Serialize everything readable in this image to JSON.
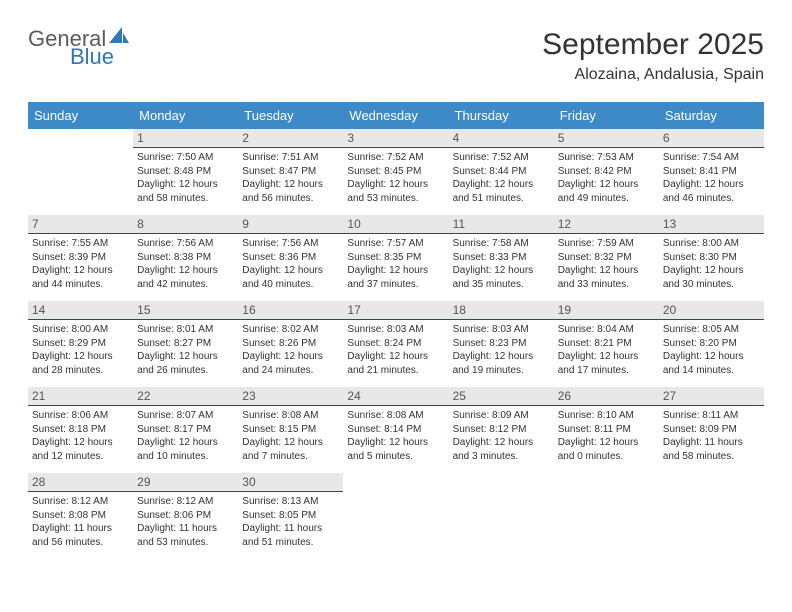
{
  "logo": {
    "word1": "General",
    "word2": "Blue",
    "sail_color": "#2f77b8"
  },
  "title": "September 2025",
  "location": "Alozaina, Andalusia, Spain",
  "colors": {
    "header_bg": "#3d8ac7",
    "header_fg": "#ffffff",
    "daynum_bg": "#e8e8e8",
    "daynum_fg": "#555555",
    "daynum_border": "#28477a",
    "text": "#333333"
  },
  "weekdays": [
    "Sunday",
    "Monday",
    "Tuesday",
    "Wednesday",
    "Thursday",
    "Friday",
    "Saturday"
  ],
  "weeks": [
    [
      null,
      {
        "n": "1",
        "sr": "7:50 AM",
        "ss": "8:48 PM",
        "dl": "12 hours and 58 minutes."
      },
      {
        "n": "2",
        "sr": "7:51 AM",
        "ss": "8:47 PM",
        "dl": "12 hours and 56 minutes."
      },
      {
        "n": "3",
        "sr": "7:52 AM",
        "ss": "8:45 PM",
        "dl": "12 hours and 53 minutes."
      },
      {
        "n": "4",
        "sr": "7:52 AM",
        "ss": "8:44 PM",
        "dl": "12 hours and 51 minutes."
      },
      {
        "n": "5",
        "sr": "7:53 AM",
        "ss": "8:42 PM",
        "dl": "12 hours and 49 minutes."
      },
      {
        "n": "6",
        "sr": "7:54 AM",
        "ss": "8:41 PM",
        "dl": "12 hours and 46 minutes."
      }
    ],
    [
      {
        "n": "7",
        "sr": "7:55 AM",
        "ss": "8:39 PM",
        "dl": "12 hours and 44 minutes."
      },
      {
        "n": "8",
        "sr": "7:56 AM",
        "ss": "8:38 PM",
        "dl": "12 hours and 42 minutes."
      },
      {
        "n": "9",
        "sr": "7:56 AM",
        "ss": "8:36 PM",
        "dl": "12 hours and 40 minutes."
      },
      {
        "n": "10",
        "sr": "7:57 AM",
        "ss": "8:35 PM",
        "dl": "12 hours and 37 minutes."
      },
      {
        "n": "11",
        "sr": "7:58 AM",
        "ss": "8:33 PM",
        "dl": "12 hours and 35 minutes."
      },
      {
        "n": "12",
        "sr": "7:59 AM",
        "ss": "8:32 PM",
        "dl": "12 hours and 33 minutes."
      },
      {
        "n": "13",
        "sr": "8:00 AM",
        "ss": "8:30 PM",
        "dl": "12 hours and 30 minutes."
      }
    ],
    [
      {
        "n": "14",
        "sr": "8:00 AM",
        "ss": "8:29 PM",
        "dl": "12 hours and 28 minutes."
      },
      {
        "n": "15",
        "sr": "8:01 AM",
        "ss": "8:27 PM",
        "dl": "12 hours and 26 minutes."
      },
      {
        "n": "16",
        "sr": "8:02 AM",
        "ss": "8:26 PM",
        "dl": "12 hours and 24 minutes."
      },
      {
        "n": "17",
        "sr": "8:03 AM",
        "ss": "8:24 PM",
        "dl": "12 hours and 21 minutes."
      },
      {
        "n": "18",
        "sr": "8:03 AM",
        "ss": "8:23 PM",
        "dl": "12 hours and 19 minutes."
      },
      {
        "n": "19",
        "sr": "8:04 AM",
        "ss": "8:21 PM",
        "dl": "12 hours and 17 minutes."
      },
      {
        "n": "20",
        "sr": "8:05 AM",
        "ss": "8:20 PM",
        "dl": "12 hours and 14 minutes."
      }
    ],
    [
      {
        "n": "21",
        "sr": "8:06 AM",
        "ss": "8:18 PM",
        "dl": "12 hours and 12 minutes."
      },
      {
        "n": "22",
        "sr": "8:07 AM",
        "ss": "8:17 PM",
        "dl": "12 hours and 10 minutes."
      },
      {
        "n": "23",
        "sr": "8:08 AM",
        "ss": "8:15 PM",
        "dl": "12 hours and 7 minutes."
      },
      {
        "n": "24",
        "sr": "8:08 AM",
        "ss": "8:14 PM",
        "dl": "12 hours and 5 minutes."
      },
      {
        "n": "25",
        "sr": "8:09 AM",
        "ss": "8:12 PM",
        "dl": "12 hours and 3 minutes."
      },
      {
        "n": "26",
        "sr": "8:10 AM",
        "ss": "8:11 PM",
        "dl": "12 hours and 0 minutes."
      },
      {
        "n": "27",
        "sr": "8:11 AM",
        "ss": "8:09 PM",
        "dl": "11 hours and 58 minutes."
      }
    ],
    [
      {
        "n": "28",
        "sr": "8:12 AM",
        "ss": "8:08 PM",
        "dl": "11 hours and 56 minutes."
      },
      {
        "n": "29",
        "sr": "8:12 AM",
        "ss": "8:06 PM",
        "dl": "11 hours and 53 minutes."
      },
      {
        "n": "30",
        "sr": "8:13 AM",
        "ss": "8:05 PM",
        "dl": "11 hours and 51 minutes."
      },
      null,
      null,
      null,
      null
    ]
  ],
  "labels": {
    "sunrise": "Sunrise:",
    "sunset": "Sunset:",
    "daylight": "Daylight:"
  }
}
